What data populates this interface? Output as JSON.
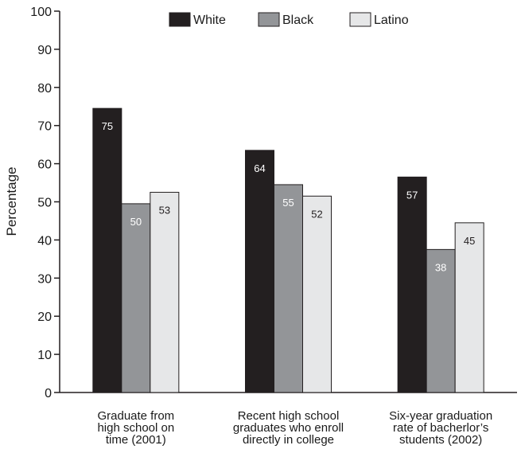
{
  "chart_data": {
    "type": "bar",
    "title": "",
    "xlabel": "",
    "ylabel": "Percentage",
    "ylim": [
      0,
      100
    ],
    "yticks": [
      0,
      10,
      20,
      30,
      40,
      50,
      60,
      70,
      80,
      90,
      100
    ],
    "grid": false,
    "legend_position": "top",
    "categories": [
      [
        "Graduate from",
        "high school on",
        "time (2001)"
      ],
      [
        "Recent high school",
        "graduates who enroll",
        "directly in college"
      ],
      [
        "Six-year graduation",
        "rate of bacherlor’s",
        "students (2002)"
      ]
    ],
    "series": [
      {
        "name": "White",
        "color": "#231f20",
        "label_color": "#ffffff",
        "values": [
          74.5,
          63.5,
          56.5
        ],
        "labels": [
          "75",
          "64",
          "57"
        ]
      },
      {
        "name": "Black",
        "color": "#939598",
        "label_color": "#ffffff",
        "values": [
          49.5,
          54.5,
          37.5
        ],
        "labels": [
          "50",
          "55",
          "38"
        ]
      },
      {
        "name": "Latino",
        "color": "#e6e7e8",
        "label_color": "#231f20",
        "values": [
          52.5,
          51.5,
          44.5
        ],
        "labels": [
          "53",
          "52",
          "45"
        ]
      }
    ]
  }
}
